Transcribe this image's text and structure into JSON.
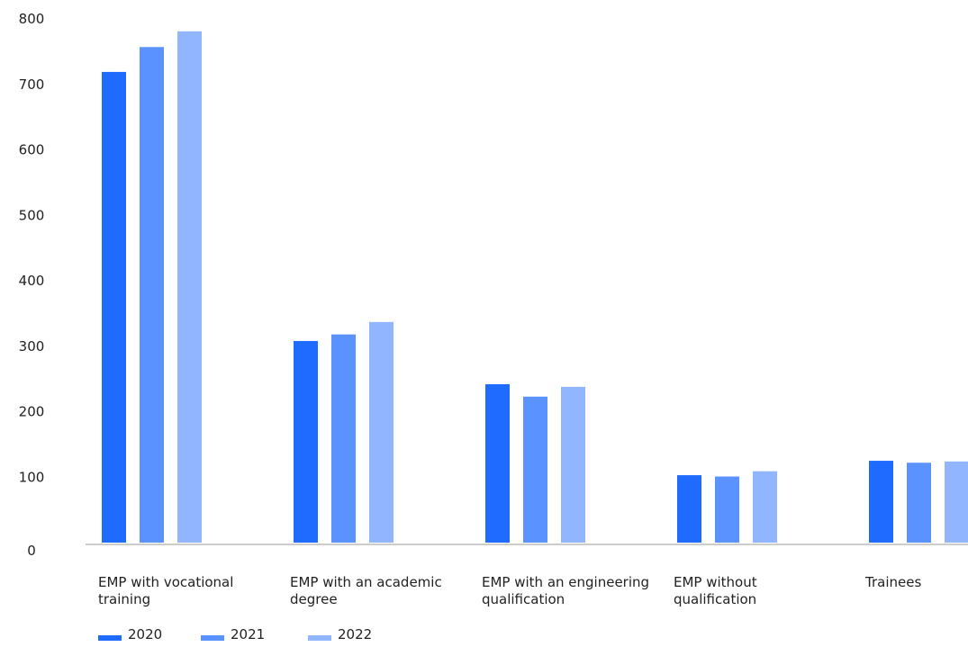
{
  "chart_data": {
    "type": "bar",
    "categories": [
      [
        "EMP with vocational",
        "training"
      ],
      [
        "EMP with an academic",
        "degree"
      ],
      [
        "EMP with an engineering",
        "qualification"
      ],
      [
        "EMP without",
        "qualification"
      ],
      [
        "Trainees"
      ]
    ],
    "series": [
      {
        "name": "2020",
        "color": "#1f6bff",
        "values": [
          719,
          308,
          242,
          103,
          125
        ]
      },
      {
        "name": "2021",
        "color": "#5a93ff",
        "values": [
          757,
          318,
          223,
          101,
          122
        ]
      },
      {
        "name": "2022",
        "color": "#91b6ff",
        "values": [
          781,
          337,
          238,
          109,
          124
        ]
      }
    ],
    "y_ticks": [
      "0",
      "100",
      "200",
      "300",
      "400",
      "500",
      "600",
      "700",
      "800"
    ],
    "ylim": [
      0,
      800
    ],
    "grid": false,
    "legend_position": "bottom-left",
    "title": "",
    "xlabel": "",
    "ylabel": ""
  }
}
